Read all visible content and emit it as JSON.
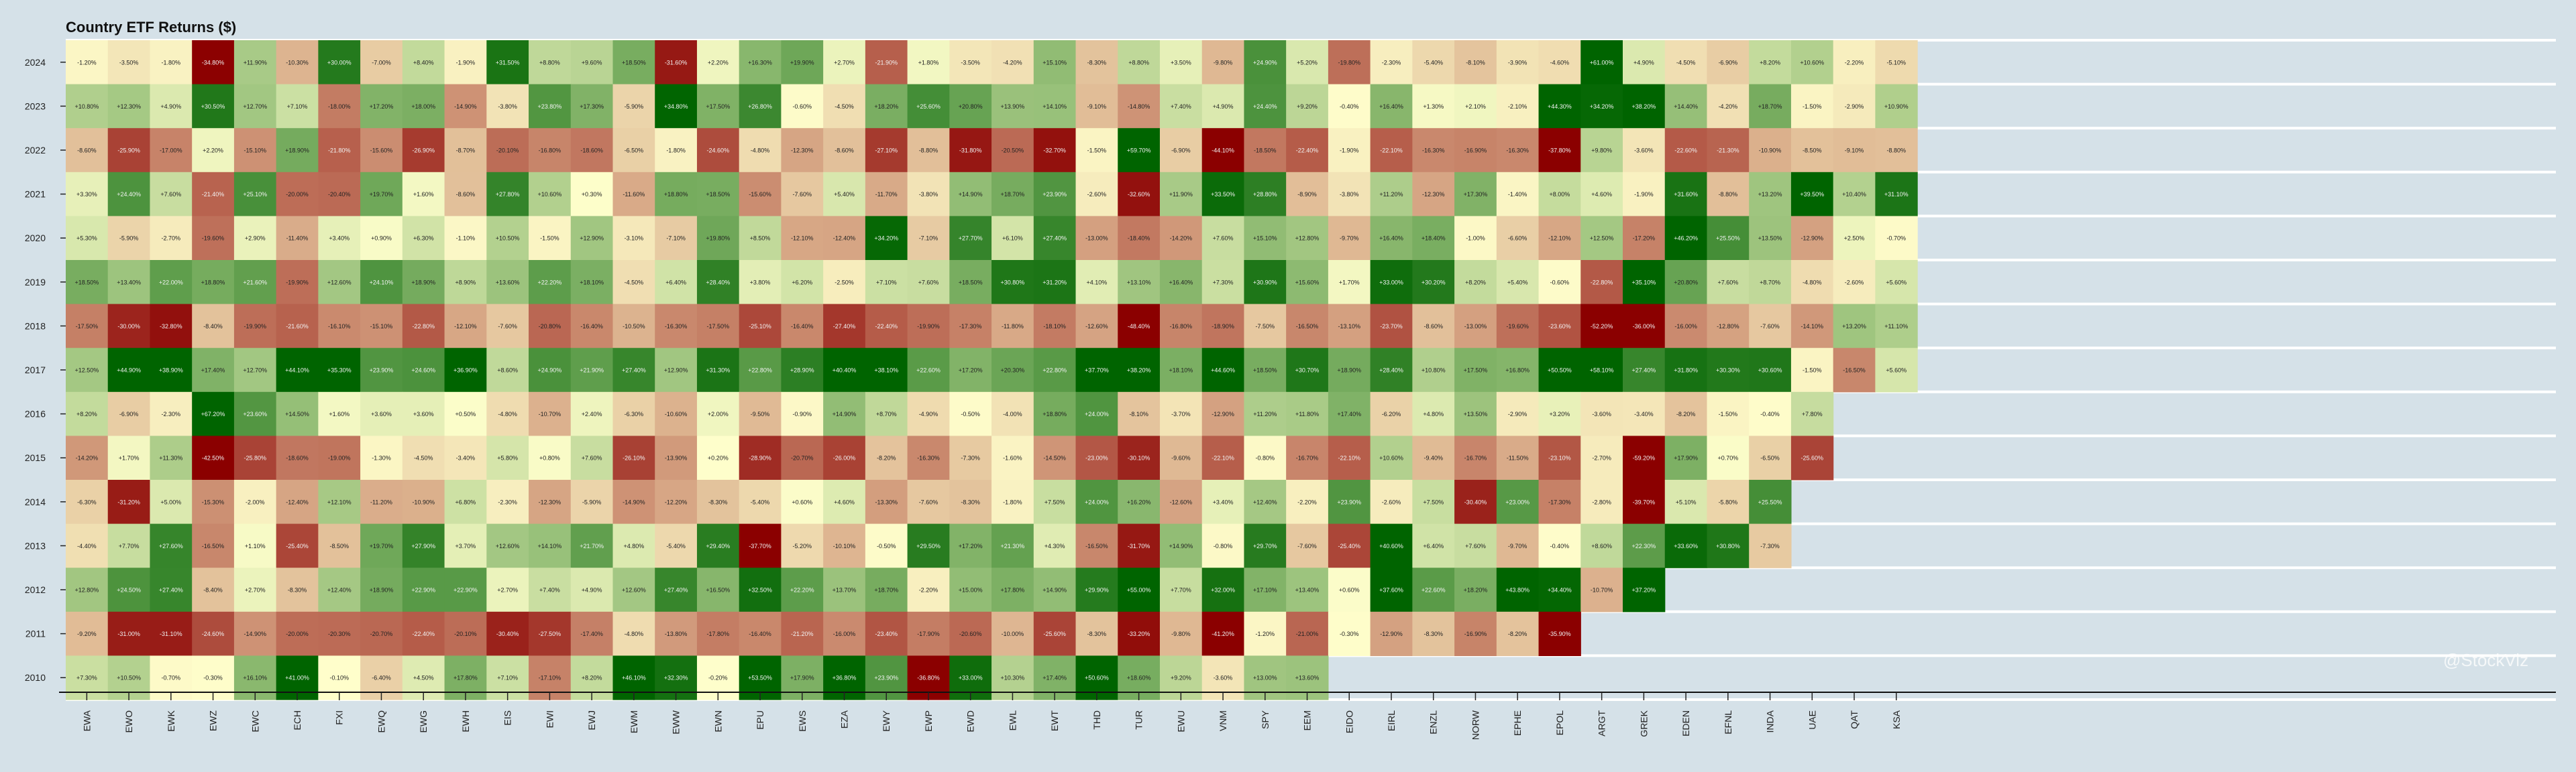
{
  "title": "Country ETF Returns ($)",
  "watermark": "@StockViz",
  "chart_data": {
    "type": "heatmap",
    "title": "Country ETF Returns ($)",
    "columns": [
      "EWA",
      "EWO",
      "EWK",
      "EWZ",
      "EWC",
      "ECH",
      "FXI",
      "EWQ",
      "EWG",
      "EWH",
      "EIS",
      "EWI",
      "EWJ",
      "EWM",
      "EWW",
      "EWN",
      "EPU",
      "EWS",
      "EZA",
      "EWY",
      "EWP",
      "EWD",
      "EWL",
      "EWT",
      "THD",
      "TUR",
      "EWU",
      "VNM",
      "SPY",
      "EEM",
      "EIDO",
      "EIRL",
      "ENZL",
      "NORW",
      "EPHE",
      "EPOL",
      "ARGT",
      "GREK",
      "EDEN",
      "EFNL",
      "INDA",
      "UAE",
      "QAT",
      "KSA"
    ],
    "years": [
      "2024",
      "2023",
      "2022",
      "2021",
      "2020",
      "2019",
      "2018",
      "2017",
      "2016",
      "2015",
      "2014",
      "2013",
      "2012",
      "2011",
      "2010"
    ],
    "values": [
      [
        -1.2,
        -3.5,
        -1.8,
        -34.8,
        11.9,
        -10.3,
        30.0,
        -7.0,
        8.4,
        -1.9,
        31.5,
        8.8,
        9.6,
        18.5,
        -31.6,
        2.2,
        16.3,
        19.9,
        2.7,
        -21.9,
        1.8,
        -3.5,
        -4.2,
        15.1,
        -8.3,
        8.8,
        3.5,
        -9.8,
        24.9,
        5.2,
        -19.8,
        -2.3,
        -5.4,
        -8.1,
        -3.9,
        -4.6,
        61.0,
        4.9,
        -4.5,
        -6.9,
        8.2,
        10.6,
        -2.2,
        -5.1
      ],
      [
        10.8,
        12.3,
        4.9,
        30.5,
        12.7,
        7.1,
        -18.0,
        17.2,
        18.0,
        -14.9,
        -3.8,
        23.8,
        17.3,
        -5.9,
        34.8,
        17.5,
        26.8,
        -0.6,
        -4.5,
        18.2,
        25.6,
        20.8,
        13.9,
        14.1,
        -9.1,
        -14.8,
        7.4,
        4.9,
        24.4,
        9.2,
        -0.4,
        16.4,
        1.3,
        2.1,
        -2.1,
        44.3,
        34.2,
        38.2,
        14.4,
        -4.2,
        18.7,
        -1.5,
        -2.9,
        10.9
      ],
      [
        -8.6,
        -25.9,
        -17.0,
        2.2,
        -15.1,
        18.9,
        -21.8,
        -15.6,
        -26.9,
        -8.7,
        -20.1,
        -16.8,
        -18.6,
        -6.5,
        -1.8,
        -24.6,
        -4.8,
        -12.3,
        -8.6,
        -27.1,
        -8.8,
        -31.8,
        -20.5,
        -32.7,
        -1.5,
        59.7,
        -6.9,
        -44.1,
        -18.5,
        -22.4,
        -1.9,
        -22.1,
        -16.3,
        -16.9,
        -16.3,
        -37.8,
        9.8,
        -3.6,
        -22.6,
        -21.3,
        -10.9,
        -8.5,
        -9.1,
        -8.8
      ],
      [
        3.3,
        24.4,
        7.6,
        -21.4,
        25.1,
        -20.0,
        -20.4,
        19.7,
        1.6,
        -8.6,
        27.8,
        10.6,
        0.3,
        -11.6,
        18.8,
        18.5,
        -15.6,
        -7.6,
        5.4,
        -11.7,
        -3.8,
        14.9,
        18.7,
        23.9,
        -2.6,
        -32.6,
        11.9,
        33.5,
        28.8,
        -8.9,
        -3.8,
        11.2,
        -12.3,
        17.3,
        -1.4,
        8.0,
        4.6,
        -1.9,
        31.6,
        -8.8,
        13.2,
        39.5,
        10.4,
        31.1
      ],
      [
        5.3,
        -5.9,
        -2.7,
        -19.6,
        2.9,
        -11.4,
        3.4,
        0.9,
        6.3,
        -1.1,
        10.5,
        -1.5,
        12.9,
        -3.1,
        -7.1,
        19.8,
        8.5,
        -12.1,
        -12.4,
        34.2,
        -7.1,
        27.7,
        6.1,
        27.4,
        -13.0,
        -18.4,
        -14.2,
        7.6,
        15.1,
        12.8,
        -9.7,
        16.4,
        18.4,
        -1.0,
        -6.6,
        -12.1,
        12.5,
        -17.2,
        46.2,
        25.5,
        13.5,
        -12.9,
        2.5,
        -0.7
      ],
      [
        18.5,
        13.4,
        22.0,
        18.8,
        21.6,
        -19.9,
        12.6,
        24.1,
        18.9,
        8.9,
        13.6,
        22.2,
        18.1,
        -4.5,
        6.4,
        28.4,
        3.8,
        6.2,
        -2.5,
        7.1,
        7.6,
        18.5,
        30.8,
        31.2,
        4.1,
        13.1,
        16.4,
        7.3,
        30.9,
        15.6,
        1.7,
        33.0,
        30.2,
        8.2,
        5.4,
        -0.6,
        -22.8,
        35.1,
        20.8,
        7.6,
        8.7,
        -4.8,
        -2.6,
        5.6
      ],
      [
        -17.5,
        -30.0,
        -32.8,
        -8.4,
        -19.9,
        -21.6,
        -16.1,
        -15.1,
        -22.8,
        -12.1,
        -7.6,
        -20.8,
        -16.4,
        -10.5,
        -16.3,
        -17.5,
        -25.1,
        -16.4,
        -27.4,
        -22.4,
        -19.9,
        -17.3,
        -11.8,
        -18.1,
        -12.6,
        -48.4,
        -16.8,
        -18.9,
        -7.5,
        -16.5,
        -13.1,
        -23.7,
        -8.6,
        -13.0,
        -19.6,
        -23.6,
        -52.2,
        -36.0,
        -16.0,
        -12.8,
        -7.6,
        -14.1,
        13.2,
        11.1
      ],
      [
        12.5,
        44.9,
        38.9,
        17.4,
        12.7,
        44.1,
        35.3,
        23.9,
        24.6,
        36.9,
        8.6,
        24.9,
        21.9,
        27.4,
        12.9,
        31.3,
        22.8,
        28.9,
        40.4,
        38.1,
        22.6,
        17.2,
        20.3,
        22.8,
        37.7,
        38.2,
        18.1,
        44.6,
        18.5,
        30.7,
        18.9,
        28.4,
        10.8,
        17.5,
        16.8,
        50.5,
        58.1,
        27.4,
        31.8,
        30.3,
        30.6,
        -1.5,
        -16.5,
        5.6
      ],
      [
        8.2,
        -6.9,
        -2.3,
        67.2,
        23.6,
        14.5,
        1.6,
        3.6,
        3.6,
        0.5,
        -4.8,
        -10.7,
        2.4,
        -6.3,
        -10.6,
        2.0,
        -9.5,
        -0.9,
        14.9,
        8.7,
        -4.9,
        -0.5,
        -4.0,
        18.8,
        24.0,
        -8.1,
        -3.7,
        -12.9,
        11.2,
        11.8,
        17.4,
        -6.2,
        4.8,
        13.5,
        -2.9,
        3.2,
        -3.6,
        -3.4,
        -8.2,
        -1.5,
        -0.4,
        7.8,
        null,
        null
      ],
      [
        -14.2,
        1.7,
        11.3,
        -42.5,
        -25.8,
        -18.6,
        -19.0,
        -1.3,
        -4.5,
        -3.4,
        5.8,
        0.8,
        7.6,
        -26.1,
        -13.9,
        0.2,
        -28.9,
        -20.7,
        -26.0,
        -8.2,
        -16.3,
        -7.3,
        -1.6,
        -14.5,
        -23.0,
        -30.1,
        -9.6,
        -22.1,
        -0.8,
        -16.7,
        -22.1,
        10.6,
        -9.4,
        -16.7,
        -11.5,
        -23.1,
        -2.7,
        -59.2,
        17.9,
        0.7,
        -6.5,
        -25.6,
        null,
        null
      ],
      [
        -6.3,
        -31.2,
        5.0,
        -15.3,
        -2.0,
        -12.4,
        12.1,
        -11.2,
        -10.9,
        6.8,
        -2.3,
        -12.3,
        -5.9,
        -14.9,
        -12.2,
        -8.3,
        -5.4,
        0.6,
        4.6,
        -13.3,
        -7.6,
        -8.3,
        -1.8,
        7.5,
        24.0,
        16.2,
        -12.6,
        3.4,
        12.4,
        -2.2,
        23.9,
        -2.6,
        7.5,
        -30.4,
        23.0,
        -17.3,
        -2.8,
        -39.7,
        5.1,
        -5.8,
        25.5,
        null,
        null,
        null
      ],
      [
        -4.4,
        7.7,
        27.6,
        -16.5,
        1.1,
        -25.4,
        -8.5,
        19.7,
        27.9,
        3.7,
        12.6,
        14.1,
        21.7,
        4.8,
        -5.4,
        29.4,
        -37.7,
        -5.2,
        -10.1,
        -0.5,
        29.5,
        17.2,
        21.3,
        4.3,
        -16.5,
        -31.7,
        14.9,
        -0.8,
        29.7,
        -7.6,
        -25.4,
        40.6,
        6.4,
        7.6,
        -9.7,
        -0.4,
        8.6,
        22.3,
        33.6,
        30.8,
        -7.3,
        null,
        null,
        null
      ],
      [
        12.8,
        24.5,
        27.4,
        -8.4,
        2.7,
        -8.3,
        12.4,
        18.9,
        22.9,
        22.9,
        2.7,
        7.4,
        4.9,
        12.6,
        27.4,
        16.5,
        32.5,
        22.2,
        13.7,
        18.7,
        -2.2,
        15.0,
        17.8,
        14.9,
        29.9,
        55.0,
        7.7,
        32.0,
        17.1,
        13.4,
        0.6,
        37.6,
        22.6,
        18.2,
        43.8,
        34.4,
        -10.7,
        37.2,
        null,
        null,
        null,
        null,
        null,
        null
      ],
      [
        -9.2,
        -31.0,
        -31.1,
        -24.6,
        -14.9,
        -20.0,
        -20.3,
        -20.7,
        -22.4,
        -20.1,
        -30.4,
        -27.5,
        -17.4,
        -4.8,
        -13.8,
        -17.8,
        -16.4,
        -21.2,
        -16.0,
        -23.4,
        -17.9,
        -20.6,
        -10.0,
        -25.6,
        -8.3,
        -33.2,
        -9.8,
        -41.2,
        -1.2,
        -21.0,
        -0.3,
        -12.9,
        -8.3,
        -16.9,
        -8.2,
        -35.9,
        null,
        null,
        null,
        null,
        null,
        null,
        null,
        null
      ],
      [
        7.3,
        10.5,
        -0.7,
        -0.3,
        16.1,
        41.0,
        -0.1,
        -6.4,
        4.5,
        17.8,
        7.1,
        -17.1,
        8.2,
        46.1,
        32.3,
        -0.2,
        53.5,
        17.9,
        36.8,
        23.9,
        -36.8,
        33.0,
        10.3,
        17.4,
        50.6,
        18.6,
        9.2,
        -3.6,
        13.0,
        13.6,
        null,
        null,
        null,
        null,
        null,
        null,
        null,
        null,
        null,
        null,
        null,
        null,
        null,
        null
      ]
    ],
    "color_scale": {
      "negative": "#8b0000",
      "neutral": "#ffffcc",
      "positive": "#006400"
    },
    "value_format": "percent, 2 decimals, sign shown"
  }
}
